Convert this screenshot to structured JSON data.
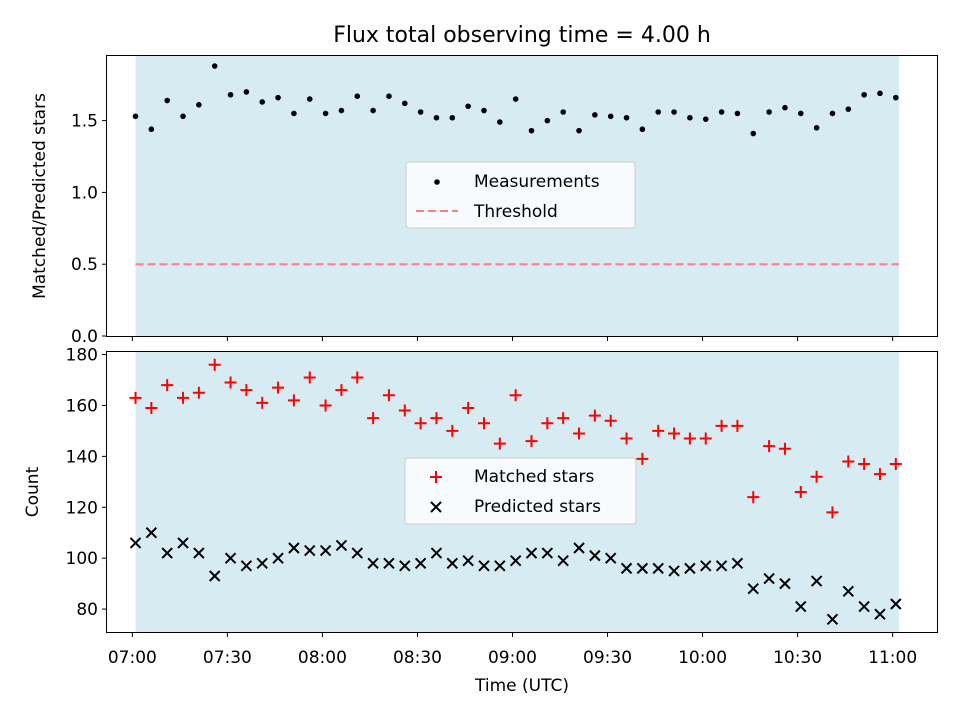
{
  "figure": {
    "title": "Flux total observing time = 4.00 h",
    "xlabel": "Time (UTC)",
    "xtick_labels": [
      "07:00",
      "07:30",
      "08:00",
      "08:30",
      "09:00",
      "09:30",
      "10:00",
      "10:30",
      "11:00"
    ]
  },
  "colors": {
    "shade": "#add8e6",
    "measurements": "#000000",
    "threshold": "#ff7f7f",
    "matched": "#ff0000",
    "predicted": "#000000"
  },
  "chart_data": [
    {
      "type": "scatter",
      "panel": "top",
      "ylabel": "Matched/Predicted stars",
      "xlim": [
        "06:52",
        "11:14"
      ],
      "ylim": [
        0,
        1.95
      ],
      "yticks": [
        0.0,
        0.5,
        1.0,
        1.5
      ],
      "ytick_labels": [
        "0.0",
        "0.5",
        "1.0",
        "1.5"
      ],
      "shaded_span": [
        "07:01",
        "11:02"
      ],
      "legend_position": "center",
      "x": [
        "07:01",
        "07:06",
        "07:11",
        "07:16",
        "07:21",
        "07:26",
        "07:31",
        "07:36",
        "07:41",
        "07:46",
        "07:51",
        "07:56",
        "08:01",
        "08:06",
        "08:11",
        "08:16",
        "08:21",
        "08:26",
        "08:31",
        "08:36",
        "08:41",
        "08:46",
        "08:51",
        "08:56",
        "09:01",
        "09:06",
        "09:11",
        "09:16",
        "09:21",
        "09:26",
        "09:31",
        "09:36",
        "09:41",
        "09:46",
        "09:51",
        "09:56",
        "10:01",
        "10:06",
        "10:11",
        "10:16",
        "10:21",
        "10:26",
        "10:31",
        "10:36",
        "10:41",
        "10:46",
        "10:51",
        "10:56",
        "11:01"
      ],
      "series": [
        {
          "name": "Measurements",
          "marker": "dot",
          "values": [
            1.53,
            1.44,
            1.64,
            1.53,
            1.61,
            1.88,
            1.68,
            1.7,
            1.63,
            1.66,
            1.55,
            1.65,
            1.55,
            1.57,
            1.67,
            1.57,
            1.67,
            1.62,
            1.56,
            1.52,
            1.52,
            1.6,
            1.57,
            1.49,
            1.65,
            1.43,
            1.5,
            1.56,
            1.43,
            1.54,
            1.53,
            1.52,
            1.44,
            1.56,
            1.56,
            1.52,
            1.51,
            1.56,
            1.55,
            1.41,
            1.56,
            1.59,
            1.55,
            1.45,
            1.55,
            1.58,
            1.68,
            1.69,
            1.66
          ]
        }
      ],
      "hlines": [
        {
          "name": "Threshold",
          "y": 0.5,
          "style": "dashed"
        }
      ]
    },
    {
      "type": "scatter",
      "panel": "bottom",
      "ylabel": "Count",
      "xlim": [
        "06:52",
        "11:14"
      ],
      "ylim": [
        71,
        181
      ],
      "yticks": [
        80,
        100,
        120,
        140,
        160,
        180
      ],
      "ytick_labels": [
        "80",
        "100",
        "120",
        "140",
        "160",
        "180"
      ],
      "shaded_span": [
        "07:01",
        "11:02"
      ],
      "legend_position": "center",
      "x": [
        "07:01",
        "07:06",
        "07:11",
        "07:16",
        "07:21",
        "07:26",
        "07:31",
        "07:36",
        "07:41",
        "07:46",
        "07:51",
        "07:56",
        "08:01",
        "08:06",
        "08:11",
        "08:16",
        "08:21",
        "08:26",
        "08:31",
        "08:36",
        "08:41",
        "08:46",
        "08:51",
        "08:56",
        "09:01",
        "09:06",
        "09:11",
        "09:16",
        "09:21",
        "09:26",
        "09:31",
        "09:36",
        "09:41",
        "09:46",
        "09:51",
        "09:56",
        "10:01",
        "10:06",
        "10:11",
        "10:16",
        "10:21",
        "10:26",
        "10:31",
        "10:36",
        "10:41",
        "10:46",
        "10:51",
        "10:56",
        "11:01"
      ],
      "series": [
        {
          "name": "Matched stars",
          "marker": "plus",
          "values": [
            163,
            159,
            168,
            163,
            165,
            176,
            169,
            166,
            161,
            167,
            162,
            171,
            160,
            166,
            171,
            155,
            164,
            158,
            153,
            155,
            150,
            159,
            153,
            145,
            164,
            146,
            153,
            155,
            149,
            156,
            154,
            147,
            139,
            150,
            149,
            147,
            147,
            152,
            152,
            124,
            144,
            143,
            126,
            132,
            118,
            138,
            137,
            133,
            137
          ]
        },
        {
          "name": "Predicted stars",
          "marker": "x",
          "values": [
            106,
            110,
            102,
            106,
            102,
            93,
            100,
            97,
            98,
            100,
            104,
            103,
            103,
            105,
            102,
            98,
            98,
            97,
            98,
            102,
            98,
            99,
            97,
            97,
            99,
            102,
            102,
            99,
            104,
            101,
            100,
            96,
            96,
            96,
            95,
            96,
            97,
            97,
            98,
            88,
            92,
            90,
            81,
            91,
            76,
            87,
            81,
            78,
            82
          ]
        }
      ]
    }
  ]
}
